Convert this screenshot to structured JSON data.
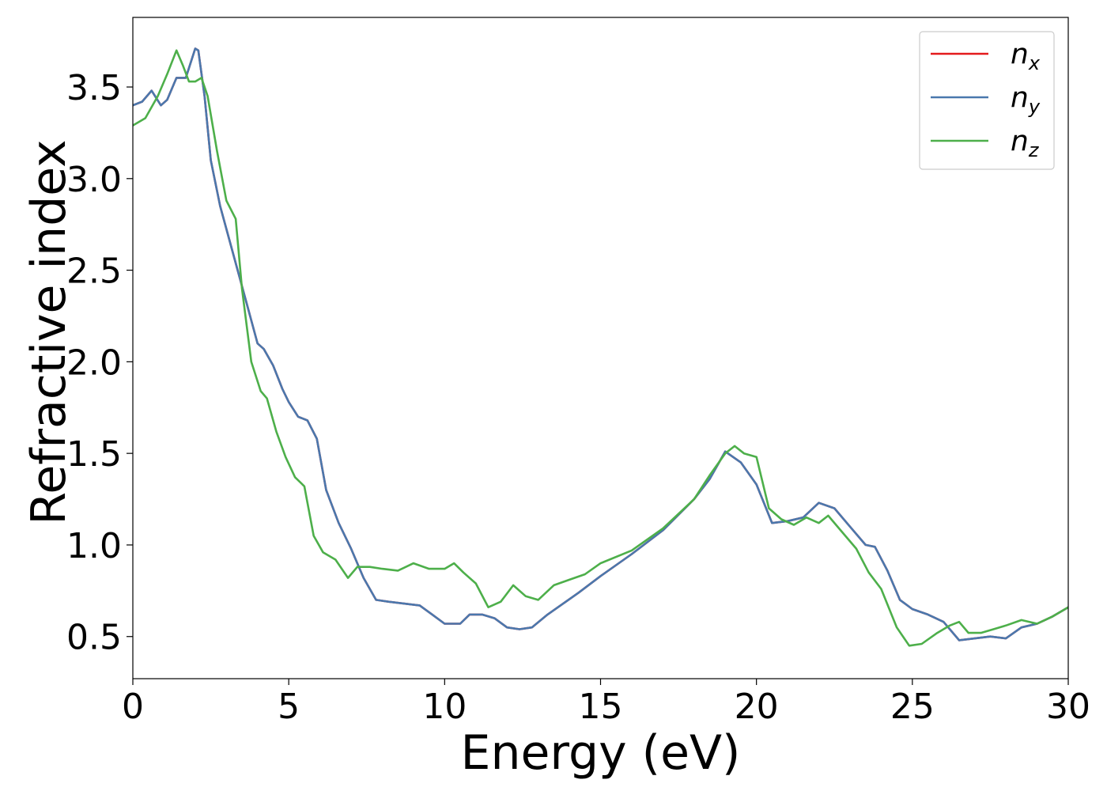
{
  "chart_data": {
    "type": "line",
    "xlabel": "Energy (eV)",
    "ylabel": "Refractive index",
    "xlim": [
      0,
      30
    ],
    "ylim": [
      0.27,
      3.88
    ],
    "xticks": [
      0,
      5,
      10,
      15,
      20,
      25,
      30
    ],
    "xtick_labels": [
      "0",
      "5",
      "10",
      "15",
      "20",
      "25",
      "30"
    ],
    "yticks": [
      0.5,
      1.0,
      1.5,
      2.0,
      2.5,
      3.0,
      3.5
    ],
    "ytick_labels": [
      "0.5",
      "1.0",
      "1.5",
      "2.0",
      "2.5",
      "3.0",
      "3.5"
    ],
    "grid": false,
    "legend_position": "top-right",
    "series": [
      {
        "name": "n_x",
        "label_main": "n",
        "label_sub": "x",
        "color": "#e41a1c",
        "x": [
          0,
          0.3,
          0.6,
          0.9,
          1.1,
          1.4,
          1.7,
          2.0,
          2.1,
          2.3,
          2.5,
          2.8,
          3.2,
          3.6,
          4.0,
          4.2,
          4.5,
          4.8,
          5.0,
          5.3,
          5.6,
          5.9,
          6.2,
          6.6,
          7.0,
          7.4,
          7.8,
          8.2,
          8.7,
          9.2,
          9.6,
          10.0,
          10.5,
          10.8,
          11.2,
          11.6,
          12.0,
          12.4,
          12.8,
          13.3,
          13.8,
          14.3,
          15.0,
          16.0,
          17.0,
          18.0,
          18.5,
          19.0,
          19.5,
          20.0,
          20.5,
          21.0,
          21.5,
          22.0,
          22.5,
          23.0,
          23.5,
          23.8,
          24.2,
          24.6,
          25.0,
          25.5,
          26.0,
          26.5,
          27.0,
          27.5,
          28.0,
          28.5,
          29.0,
          29.5,
          30.0
        ],
        "values": [
          3.4,
          3.42,
          3.48,
          3.4,
          3.43,
          3.55,
          3.55,
          3.71,
          3.7,
          3.45,
          3.1,
          2.85,
          2.6,
          2.35,
          2.1,
          2.07,
          1.98,
          1.85,
          1.78,
          1.7,
          1.68,
          1.58,
          1.3,
          1.12,
          0.98,
          0.82,
          0.7,
          0.69,
          0.68,
          0.67,
          0.62,
          0.57,
          0.57,
          0.62,
          0.62,
          0.6,
          0.55,
          0.54,
          0.55,
          0.62,
          0.68,
          0.74,
          0.83,
          0.95,
          1.08,
          1.25,
          1.36,
          1.51,
          1.45,
          1.33,
          1.12,
          1.13,
          1.15,
          1.23,
          1.2,
          1.1,
          1.0,
          0.99,
          0.86,
          0.7,
          0.65,
          0.62,
          0.58,
          0.48,
          0.49,
          0.5,
          0.49,
          0.55,
          0.57,
          0.61,
          0.66
        ]
      },
      {
        "name": "n_y",
        "label_main": "n",
        "label_sub": "y",
        "color": "#4a78ad",
        "x": [
          0,
          0.3,
          0.6,
          0.9,
          1.1,
          1.4,
          1.7,
          2.0,
          2.1,
          2.3,
          2.5,
          2.8,
          3.2,
          3.6,
          4.0,
          4.2,
          4.5,
          4.8,
          5.0,
          5.3,
          5.6,
          5.9,
          6.2,
          6.6,
          7.0,
          7.4,
          7.8,
          8.2,
          8.7,
          9.2,
          9.6,
          10.0,
          10.5,
          10.8,
          11.2,
          11.6,
          12.0,
          12.4,
          12.8,
          13.3,
          13.8,
          14.3,
          15.0,
          16.0,
          17.0,
          18.0,
          18.5,
          19.0,
          19.5,
          20.0,
          20.5,
          21.0,
          21.5,
          22.0,
          22.5,
          23.0,
          23.5,
          23.8,
          24.2,
          24.6,
          25.0,
          25.5,
          26.0,
          26.5,
          27.0,
          27.5,
          28.0,
          28.5,
          29.0,
          29.5,
          30.0
        ],
        "values": [
          3.4,
          3.42,
          3.48,
          3.4,
          3.43,
          3.55,
          3.55,
          3.71,
          3.7,
          3.45,
          3.1,
          2.85,
          2.6,
          2.35,
          2.1,
          2.07,
          1.98,
          1.85,
          1.78,
          1.7,
          1.68,
          1.58,
          1.3,
          1.12,
          0.98,
          0.82,
          0.7,
          0.69,
          0.68,
          0.67,
          0.62,
          0.57,
          0.57,
          0.62,
          0.62,
          0.6,
          0.55,
          0.54,
          0.55,
          0.62,
          0.68,
          0.74,
          0.83,
          0.95,
          1.08,
          1.25,
          1.36,
          1.51,
          1.45,
          1.33,
          1.12,
          1.13,
          1.15,
          1.23,
          1.2,
          1.1,
          1.0,
          0.99,
          0.86,
          0.7,
          0.65,
          0.62,
          0.58,
          0.48,
          0.49,
          0.5,
          0.49,
          0.55,
          0.57,
          0.61,
          0.66
        ]
      },
      {
        "name": "n_z",
        "label_main": "n",
        "label_sub": "z",
        "color": "#4daf4a",
        "x": [
          0,
          0.4,
          0.8,
          1.1,
          1.4,
          1.6,
          1.8,
          2.0,
          2.2,
          2.4,
          2.7,
          3.0,
          3.3,
          3.5,
          3.8,
          4.1,
          4.3,
          4.6,
          4.9,
          5.2,
          5.5,
          5.8,
          6.1,
          6.5,
          6.9,
          7.2,
          7.6,
          8.0,
          8.5,
          9.0,
          9.5,
          10.0,
          10.3,
          10.6,
          11.0,
          11.4,
          11.8,
          12.2,
          12.6,
          13.0,
          13.5,
          14.0,
          14.5,
          15.0,
          16.0,
          17.0,
          18.0,
          18.5,
          19.0,
          19.3,
          19.6,
          20.0,
          20.4,
          20.8,
          21.2,
          21.6,
          22.0,
          22.3,
          22.7,
          23.2,
          23.6,
          24.0,
          24.5,
          24.9,
          25.3,
          25.8,
          26.2,
          26.5,
          26.8,
          27.2,
          27.6,
          28.0,
          28.5,
          29.0,
          29.5,
          30.0
        ],
        "values": [
          3.29,
          3.33,
          3.45,
          3.57,
          3.7,
          3.62,
          3.53,
          3.53,
          3.55,
          3.45,
          3.15,
          2.88,
          2.78,
          2.4,
          2.0,
          1.84,
          1.8,
          1.62,
          1.48,
          1.37,
          1.32,
          1.05,
          0.96,
          0.92,
          0.82,
          0.88,
          0.88,
          0.87,
          0.86,
          0.9,
          0.87,
          0.87,
          0.9,
          0.85,
          0.79,
          0.66,
          0.69,
          0.78,
          0.72,
          0.7,
          0.78,
          0.81,
          0.84,
          0.9,
          0.97,
          1.09,
          1.25,
          1.38,
          1.5,
          1.54,
          1.5,
          1.48,
          1.2,
          1.14,
          1.11,
          1.15,
          1.12,
          1.16,
          1.08,
          0.98,
          0.85,
          0.76,
          0.55,
          0.45,
          0.46,
          0.52,
          0.56,
          0.58,
          0.52,
          0.52,
          0.54,
          0.56,
          0.59,
          0.57,
          0.61,
          0.66
        ]
      }
    ]
  }
}
